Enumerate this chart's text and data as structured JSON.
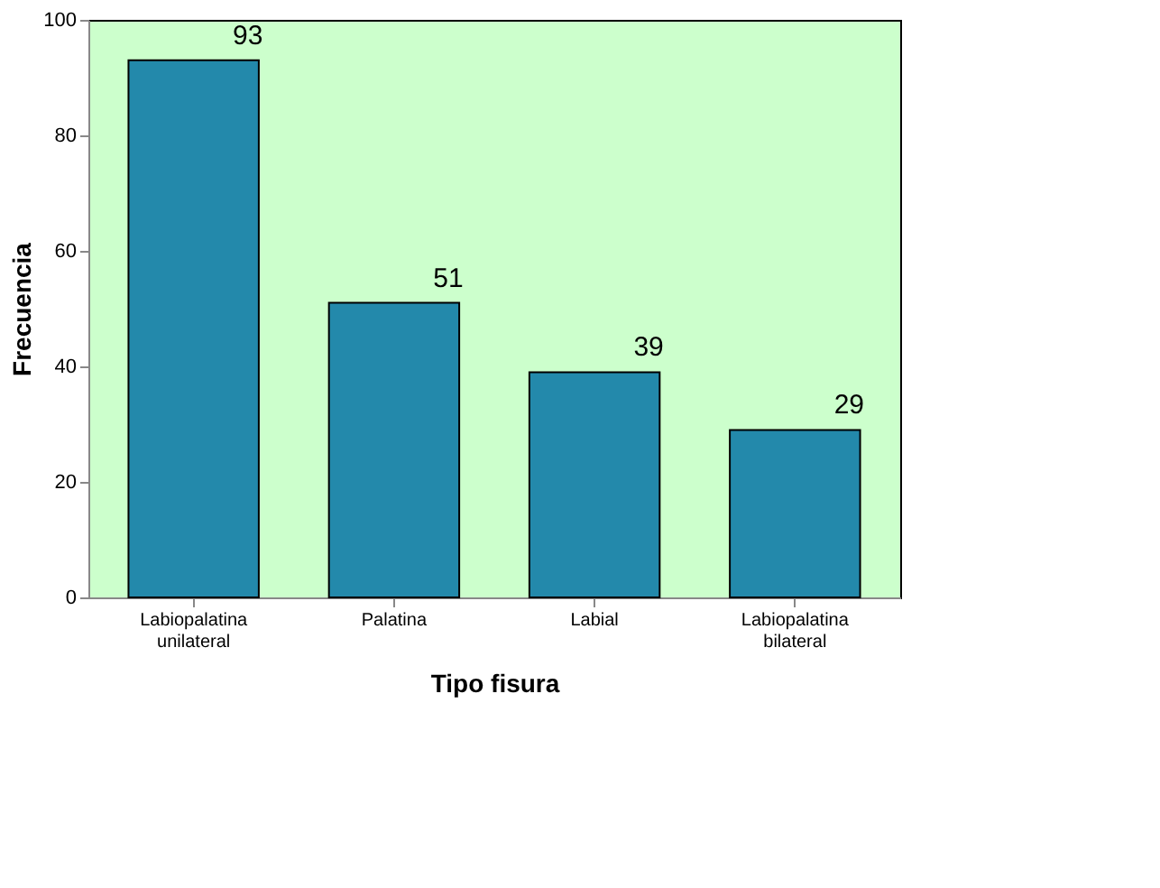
{
  "chart_data": {
    "type": "bar",
    "xlabel": "Tipo fisura",
    "ylabel": "Frecuencia",
    "categories": [
      "Labiopalatina unilateral",
      "Palatina",
      "Labial",
      "Labiopalatina bilateral"
    ],
    "values": [
      93,
      51,
      39,
      29
    ],
    "color": "#2389ab",
    "ylim": [
      0,
      100
    ],
    "yticks": [
      0,
      20,
      40,
      60,
      80,
      100
    ],
    "grid": false,
    "data_labels": true
  }
}
